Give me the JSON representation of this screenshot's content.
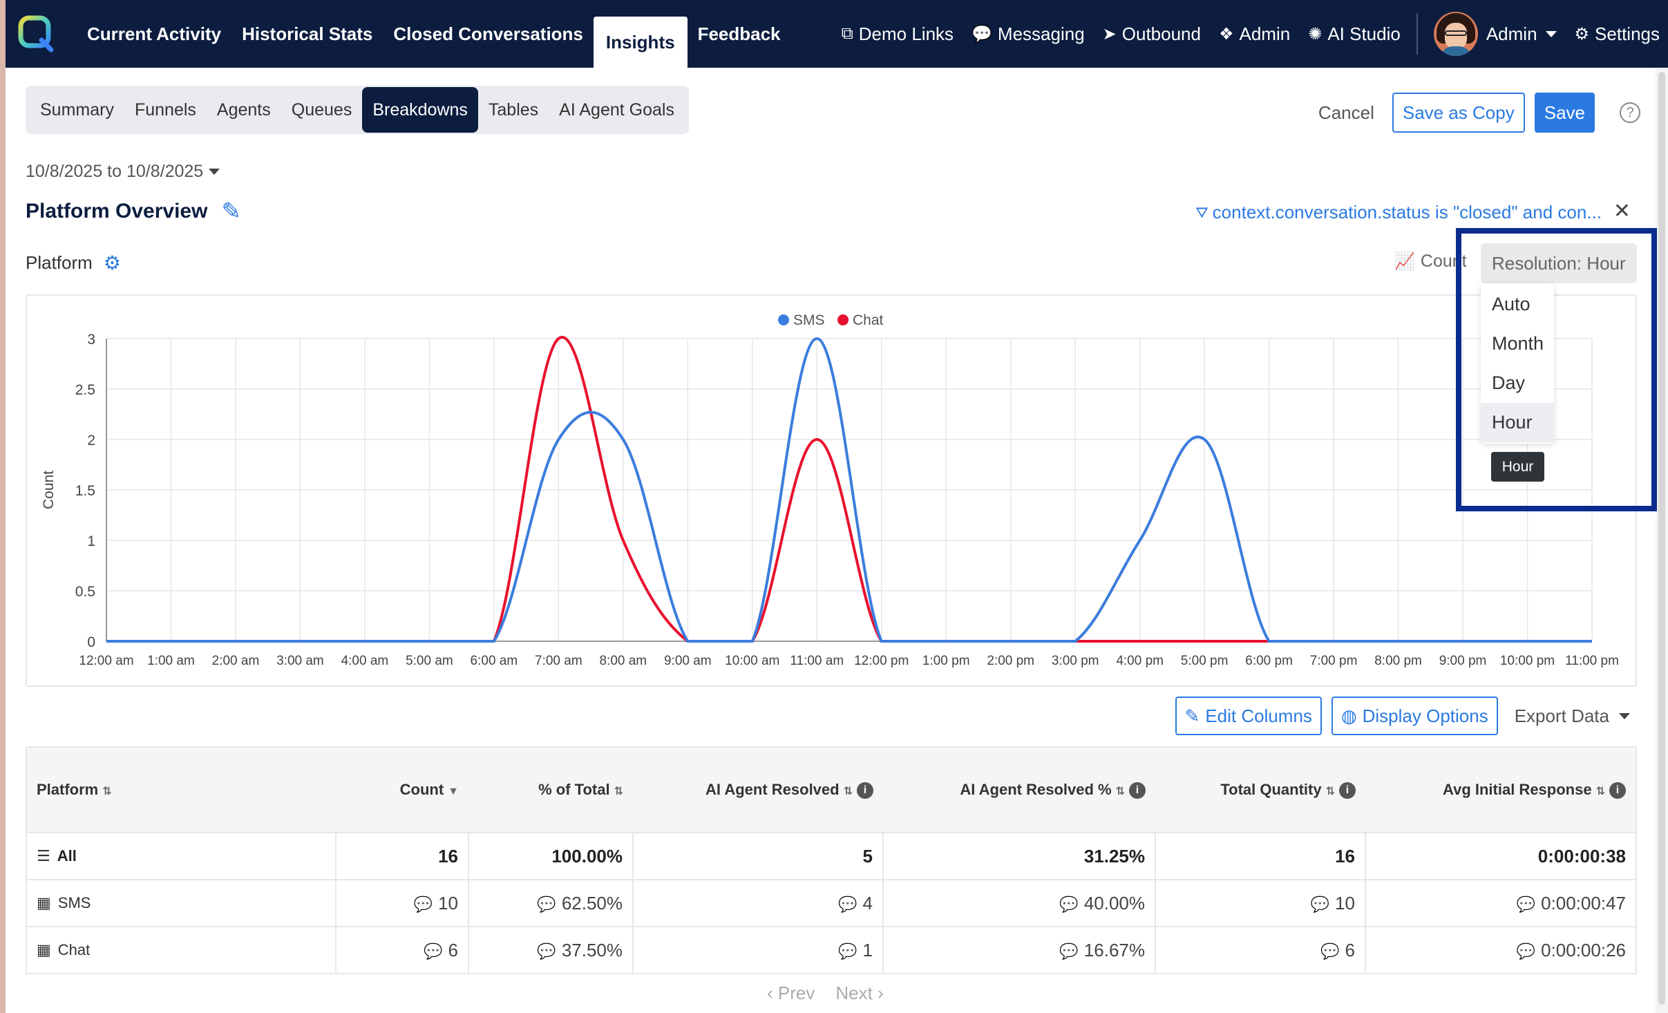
{
  "nav": {
    "left": [
      "Current Activity",
      "Historical Stats",
      "Closed Conversations",
      "Insights",
      "Feedback"
    ],
    "active_index": 3,
    "right": [
      {
        "icon": "external-link-icon",
        "label": "Demo Links"
      },
      {
        "icon": "comments-icon",
        "label": "Messaging"
      },
      {
        "icon": "paper-plane-icon",
        "label": "Outbound"
      },
      {
        "icon": "cubes-icon",
        "label": "Admin"
      },
      {
        "icon": "brain-icon",
        "label": "AI Studio"
      }
    ],
    "user_label": "Admin",
    "settings_label": "Settings"
  },
  "subtabs": {
    "items": [
      "Summary",
      "Funnels",
      "Agents",
      "Queues",
      "Breakdowns",
      "Tables",
      "AI Agent Goals"
    ],
    "active_index": 4
  },
  "actions": {
    "cancel": "Cancel",
    "save_copy": "Save as Copy",
    "save": "Save"
  },
  "date_range": "10/8/2025 to 10/8/2025",
  "page_title": "Platform Overview",
  "filter_text": "context.conversation.status is \"closed\" and con...",
  "section_label": "Platform",
  "count_toggle": "Count",
  "resolution": {
    "button_label": "Resolution: Hour",
    "options": [
      "Auto",
      "Month",
      "Day",
      "Hour"
    ],
    "selected_index": 3,
    "tooltip": "Hour"
  },
  "chart_data": {
    "type": "line",
    "ylabel": "Count",
    "ylim": [
      0,
      3
    ],
    "yticks": [
      "0",
      "0.5",
      "1",
      "1.5",
      "2",
      "2.5",
      "3"
    ],
    "categories": [
      "12:00 am",
      "1:00 am",
      "2:00 am",
      "3:00 am",
      "4:00 am",
      "5:00 am",
      "6:00 am",
      "7:00 am",
      "8:00 am",
      "9:00 am",
      "10:00 am",
      "11:00 am",
      "12:00 pm",
      "1:00 pm",
      "2:00 pm",
      "3:00 pm",
      "4:00 pm",
      "5:00 pm",
      "6:00 pm",
      "7:00 pm",
      "8:00 pm",
      "9:00 pm",
      "10:00 pm",
      "11:00 pm"
    ],
    "series": [
      {
        "name": "SMS",
        "color": "#3b7ddd",
        "values": [
          0,
          0,
          0,
          0,
          0,
          0,
          0,
          2,
          2,
          0,
          0,
          3,
          0,
          0,
          0,
          0,
          1,
          2,
          0,
          0,
          0,
          0,
          0,
          0
        ]
      },
      {
        "name": "Chat",
        "color": "#e8112d",
        "values": [
          0,
          0,
          0,
          0,
          0,
          0,
          0,
          3,
          1,
          0,
          0,
          2,
          0,
          0,
          0,
          0,
          0,
          0,
          0,
          0,
          0,
          0,
          0,
          0
        ]
      }
    ],
    "legend": "top-center"
  },
  "table_controls": {
    "edit_columns": "Edit Columns",
    "display_options": "Display Options",
    "export": "Export Data"
  },
  "table": {
    "headers": [
      "Platform",
      "Count",
      "% of Total",
      "AI Agent Resolved",
      "AI Agent Resolved %",
      "Total Quantity",
      "Avg Initial Response"
    ],
    "rows": [
      {
        "label": "All",
        "cells": [
          "16",
          "100.00%",
          "5",
          "31.25%",
          "16",
          "0:00:00:38"
        ]
      },
      {
        "label": "SMS",
        "cells": [
          "10",
          "62.50%",
          "4",
          "40.00%",
          "10",
          "0:00:00:47"
        ]
      },
      {
        "label": "Chat",
        "cells": [
          "6",
          "37.50%",
          "1",
          "16.67%",
          "6",
          "0:00:00:26"
        ]
      }
    ]
  },
  "pager": {
    "prev": "Prev",
    "next": "Next"
  }
}
